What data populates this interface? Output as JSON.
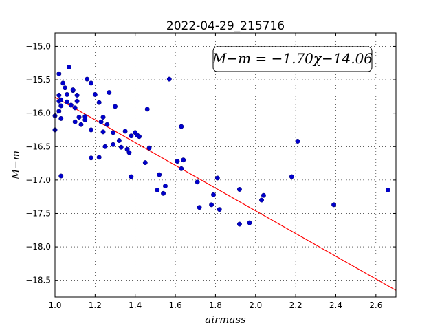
{
  "chart_data": {
    "type": "scatter",
    "title": "2022-04-29_215716",
    "xlabel": "airmass",
    "ylabel": "M−m",
    "xlim": [
      1.0,
      2.7
    ],
    "ylim": [
      -18.75,
      -14.8
    ],
    "x_ticks": [
      1.0,
      1.2,
      1.4,
      1.6,
      1.8,
      2.0,
      2.2,
      2.4,
      2.6
    ],
    "x_tick_labels": [
      "1.0",
      "1.2",
      "1.4",
      "1.6",
      "1.8",
      "2.0",
      "2.2",
      "2.4",
      "2.6"
    ],
    "y_ticks": [
      -15.0,
      -15.5,
      -16.0,
      -16.5,
      -17.0,
      -17.5,
      -18.0,
      -18.5
    ],
    "y_tick_labels": [
      "−15.0",
      "−15.5",
      "−16.0",
      "−16.5",
      "−17.0",
      "−17.5",
      "−18.0",
      "−18.5"
    ],
    "grid": true,
    "annotation": "M−m = −1.70χ−14.06",
    "colors": {
      "points": "#0000cc",
      "fit_line": "#ff0000"
    },
    "series": [
      {
        "type": "scatter",
        "points": [
          [
            1.0,
            -16.04
          ],
          [
            1.0,
            -16.25
          ],
          [
            1.02,
            -15.82
          ],
          [
            1.02,
            -15.73
          ],
          [
            1.02,
            -15.97
          ],
          [
            1.02,
            -15.41
          ],
          [
            1.03,
            -15.89
          ],
          [
            1.03,
            -15.8
          ],
          [
            1.03,
            -16.08
          ],
          [
            1.03,
            -16.94
          ],
          [
            1.04,
            -15.55
          ],
          [
            1.05,
            -15.62
          ],
          [
            1.06,
            -15.72
          ],
          [
            1.06,
            -15.83
          ],
          [
            1.07,
            -15.31
          ],
          [
            1.08,
            -15.88
          ],
          [
            1.09,
            -15.66
          ],
          [
            1.09,
            -15.65
          ],
          [
            1.1,
            -15.92
          ],
          [
            1.1,
            -16.13
          ],
          [
            1.11,
            -15.82
          ],
          [
            1.11,
            -15.73
          ],
          [
            1.12,
            -16.06
          ],
          [
            1.13,
            -16.17
          ],
          [
            1.15,
            -16.05
          ],
          [
            1.15,
            -16.1
          ],
          [
            1.16,
            -15.49
          ],
          [
            1.18,
            -15.55
          ],
          [
            1.18,
            -16.25
          ],
          [
            1.18,
            -16.67
          ],
          [
            1.2,
            -15.72
          ],
          [
            1.22,
            -15.84
          ],
          [
            1.22,
            -16.66
          ],
          [
            1.23,
            -16.13
          ],
          [
            1.24,
            -16.06
          ],
          [
            1.24,
            -16.28
          ],
          [
            1.25,
            -16.5
          ],
          [
            1.26,
            -16.17
          ],
          [
            1.27,
            -15.69
          ],
          [
            1.29,
            -16.47
          ],
          [
            1.29,
            -16.29
          ],
          [
            1.3,
            -15.9
          ],
          [
            1.32,
            -16.41
          ],
          [
            1.33,
            -16.51
          ],
          [
            1.35,
            -16.27
          ],
          [
            1.36,
            -16.54
          ],
          [
            1.37,
            -16.59
          ],
          [
            1.38,
            -16.34
          ],
          [
            1.38,
            -16.95
          ],
          [
            1.4,
            -16.29
          ],
          [
            1.41,
            -16.33
          ],
          [
            1.42,
            -16.35
          ],
          [
            1.45,
            -16.74
          ],
          [
            1.46,
            -15.94
          ],
          [
            1.47,
            -16.52
          ],
          [
            1.51,
            -17.15
          ],
          [
            1.52,
            -16.92
          ],
          [
            1.54,
            -17.2
          ],
          [
            1.55,
            -17.09
          ],
          [
            1.57,
            -15.49
          ],
          [
            1.61,
            -16.72
          ],
          [
            1.63,
            -16.2
          ],
          [
            1.63,
            -16.83
          ],
          [
            1.64,
            -16.7
          ],
          [
            1.71,
            -17.03
          ],
          [
            1.72,
            -17.41
          ],
          [
            1.78,
            -17.37
          ],
          [
            1.79,
            -17.22
          ],
          [
            1.81,
            -16.97
          ],
          [
            1.82,
            -17.44
          ],
          [
            1.92,
            -17.14
          ],
          [
            1.92,
            -17.66
          ],
          [
            1.97,
            -17.64
          ],
          [
            2.03,
            -17.3
          ],
          [
            2.04,
            -17.23
          ],
          [
            2.18,
            -16.95
          ],
          [
            2.21,
            -16.42
          ],
          [
            2.39,
            -17.37
          ],
          [
            2.66,
            -17.15
          ]
        ]
      },
      {
        "type": "line",
        "slope": -1.7,
        "intercept": -14.06,
        "x_range": [
          1.0,
          2.7
        ]
      }
    ]
  }
}
